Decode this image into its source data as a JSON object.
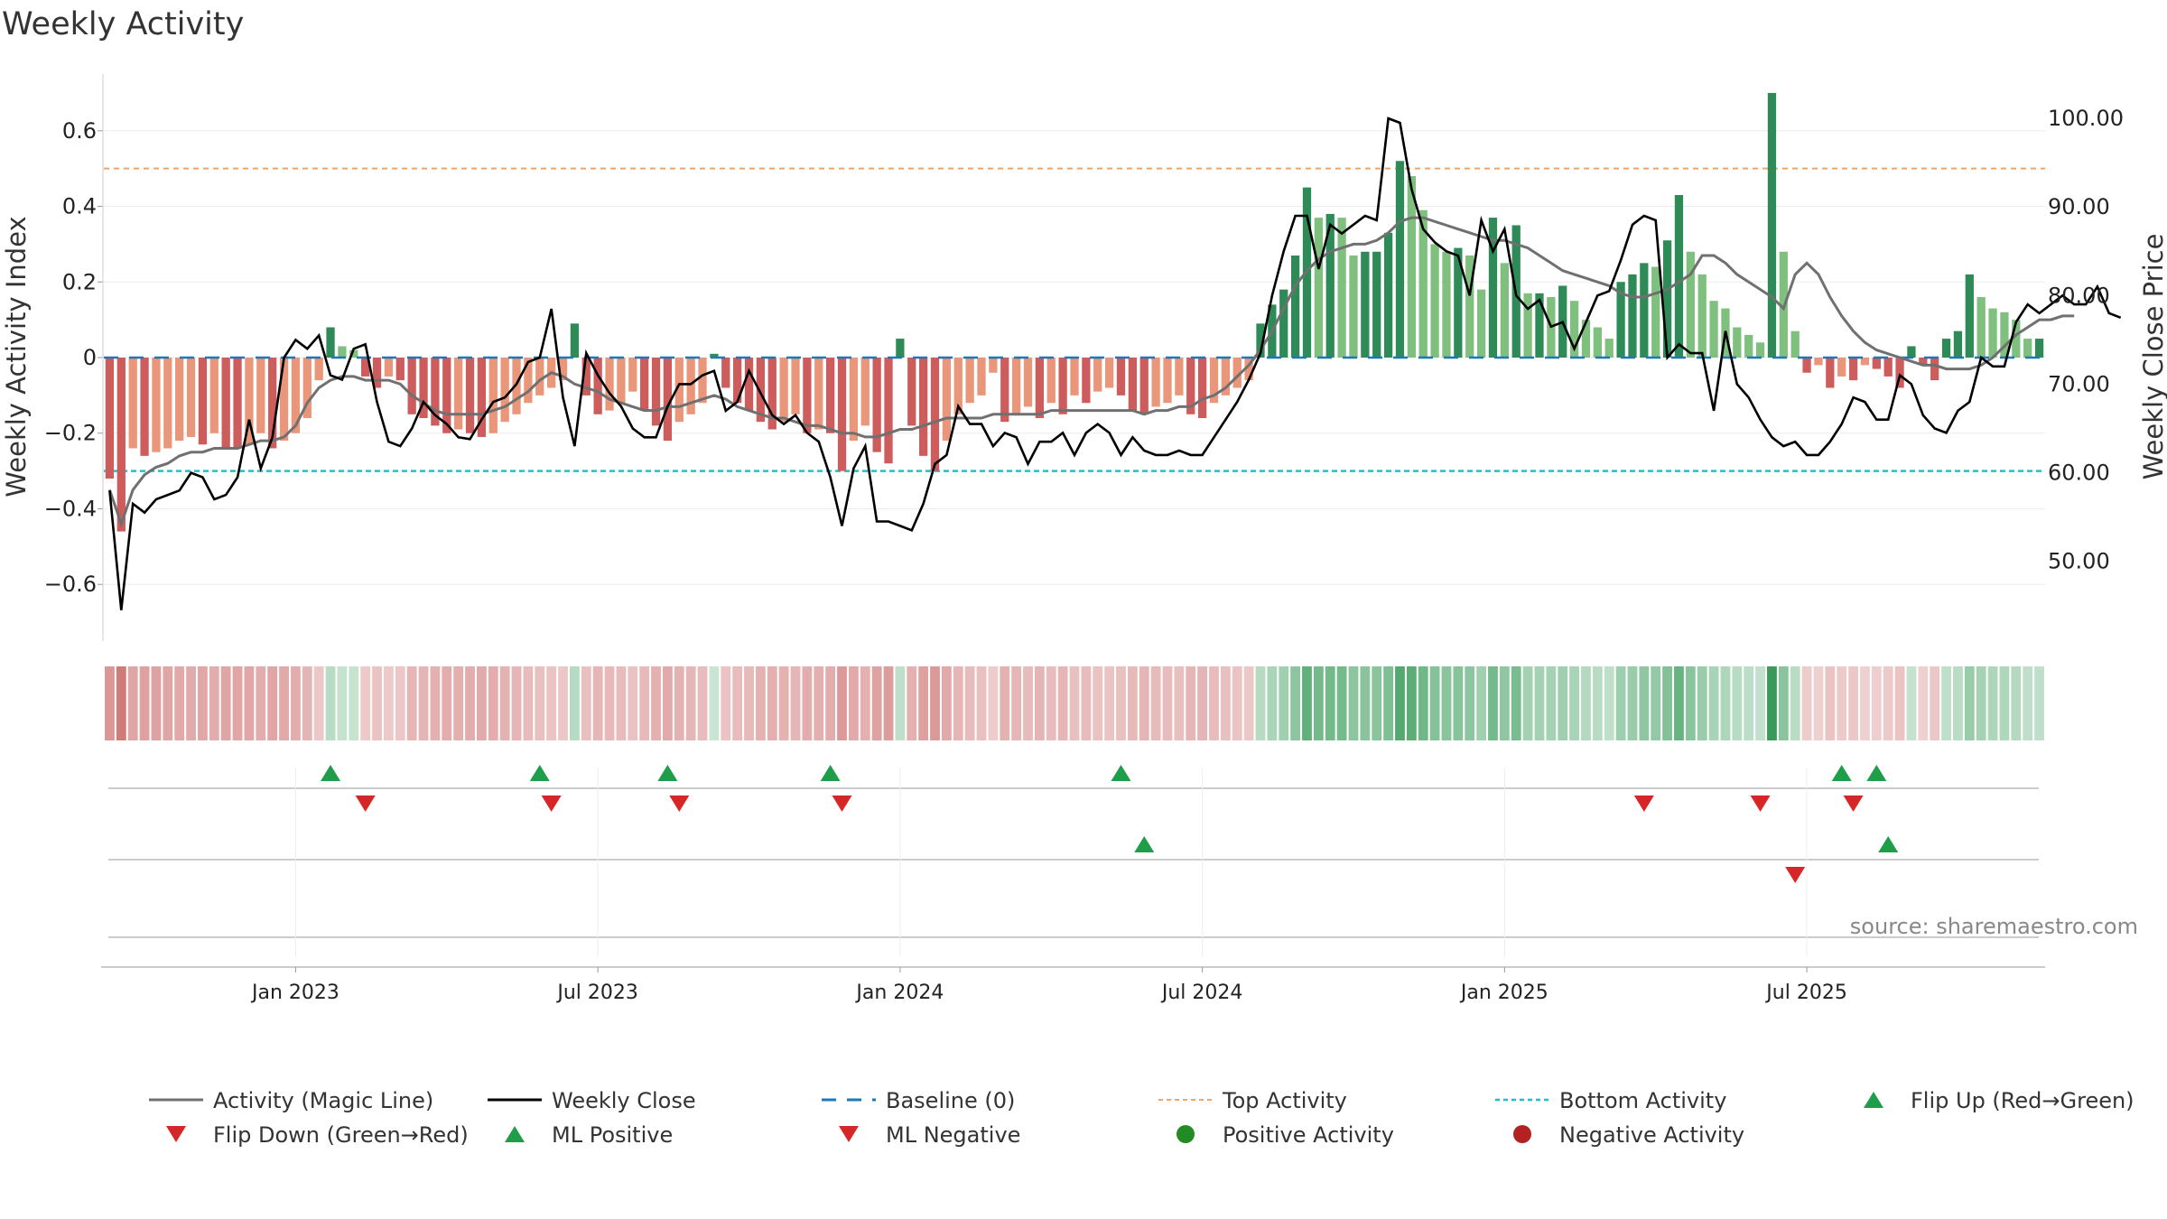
{
  "chart_data": {
    "type": "bar",
    "title": "Weekly Activity",
    "ylabel_left": "Weekly Activity Index",
    "ylabel_right": "Weekly Close Price",
    "source": "source: sharemaestro.com",
    "left_ylim": [
      -0.75,
      0.75
    ],
    "right_ylim": [
      41,
      105
    ],
    "left_ticks": [
      {
        "value": -0.6,
        "label": "−0.6"
      },
      {
        "value": -0.4,
        "label": "−0.4"
      },
      {
        "value": -0.2,
        "label": "−0.2"
      },
      {
        "value": 0,
        "label": "0"
      },
      {
        "value": 0.2,
        "label": "0.2"
      },
      {
        "value": 0.4,
        "label": "0.4"
      },
      {
        "value": 0.6,
        "label": "0.6"
      }
    ],
    "right_ticks": [
      {
        "value": 50,
        "label": "50.00"
      },
      {
        "value": 60,
        "label": "60.00"
      },
      {
        "value": 70,
        "label": "70.00"
      },
      {
        "value": 80,
        "label": "80.00"
      },
      {
        "value": 90,
        "label": "90.00"
      },
      {
        "value": 100,
        "label": "100.00"
      }
    ],
    "x_ticks": [
      {
        "week": 16,
        "label": "Jan 2023"
      },
      {
        "week": 42,
        "label": "Jul 2023"
      },
      {
        "week": 68,
        "label": "Jan 2024"
      },
      {
        "week": 94,
        "label": "Jul 2024"
      },
      {
        "week": 120,
        "label": "Jan 2025"
      },
      {
        "week": 146,
        "label": "Jul 2025"
      }
    ],
    "top_activity": 0.5,
    "bottom_activity": -0.3,
    "baseline": 0,
    "colors": {
      "strong_pos": "#2e8b57",
      "weak_pos": "#7fc07f",
      "strong_neg": "#cd5c5c",
      "weak_neg": "#e9967a",
      "close_line": "#000000",
      "magic_line": "#707070",
      "baseline": "#1f77b4",
      "top": "#f4a460",
      "bottom": "#20c0c8",
      "flip_up": "#1f9e4a",
      "flip_down": "#d62728",
      "pos_dot": "#228b22",
      "neg_dot": "#b22222"
    },
    "activity": [
      -0.32,
      -0.46,
      -0.24,
      -0.26,
      -0.25,
      -0.24,
      -0.22,
      -0.21,
      -0.23,
      -0.2,
      -0.24,
      -0.24,
      -0.23,
      -0.2,
      -0.24,
      -0.22,
      -0.2,
      -0.16,
      -0.06,
      0.08,
      0.03,
      0.02,
      -0.05,
      -0.08,
      -0.05,
      -0.06,
      -0.15,
      -0.16,
      -0.18,
      -0.2,
      -0.19,
      -0.2,
      -0.21,
      -0.2,
      -0.17,
      -0.15,
      -0.12,
      -0.1,
      -0.08,
      -0.06,
      0.09,
      -0.1,
      -0.15,
      -0.14,
      -0.12,
      -0.09,
      -0.14,
      -0.18,
      -0.22,
      -0.17,
      -0.15,
      -0.12,
      0.01,
      -0.08,
      -0.12,
      -0.14,
      -0.17,
      -0.19,
      -0.17,
      -0.15,
      -0.2,
      -0.19,
      -0.2,
      -0.3,
      -0.22,
      -0.18,
      -0.25,
      -0.28,
      0.05,
      -0.18,
      -0.26,
      -0.3,
      -0.22,
      -0.15,
      -0.12,
      -0.1,
      -0.04,
      -0.17,
      -0.15,
      -0.13,
      -0.16,
      -0.12,
      -0.15,
      -0.1,
      -0.12,
      -0.09,
      -0.08,
      -0.1,
      -0.14,
      -0.15,
      -0.13,
      -0.12,
      -0.1,
      -0.15,
      -0.16,
      -0.12,
      -0.1,
      -0.08,
      -0.06,
      0.09,
      0.14,
      0.18,
      0.27,
      0.45,
      0.37,
      0.38,
      0.37,
      0.27,
      0.28,
      0.28,
      0.33,
      0.52,
      0.48,
      0.39,
      0.3,
      0.28,
      0.29,
      0.27,
      0.18,
      0.37,
      0.25,
      0.35,
      0.17,
      0.17,
      0.16,
      0.19,
      0.15,
      0.1,
      0.08,
      0.05,
      0.2,
      0.22,
      0.25,
      0.24,
      0.31,
      0.43,
      0.28,
      0.22,
      0.15,
      0.13,
      0.08,
      0.06,
      0.04,
      0.7,
      0.28,
      0.07,
      -0.04,
      -0.02,
      -0.08,
      -0.05,
      -0.06,
      -0.02,
      -0.03,
      -0.05,
      -0.08,
      0.03,
      -0.02,
      -0.06,
      0.05,
      0.07,
      0.22,
      0.16,
      0.13,
      0.12,
      0.1,
      0.05,
      0.05
    ],
    "close": [
      58,
      44.5,
      56.5,
      55.5,
      57,
      57.5,
      58,
      60,
      59.5,
      57,
      57.5,
      59.5,
      66,
      60.5,
      64,
      73,
      75,
      74,
      75.5,
      71,
      70.5,
      74,
      74.5,
      68,
      63.5,
      63,
      65,
      68,
      66.5,
      65.5,
      64,
      63.8,
      66,
      68,
      68.5,
      70,
      72.5,
      73,
      78.5,
      68.5,
      63,
      73.5,
      71,
      69,
      67.5,
      65,
      64,
      64,
      67.5,
      70,
      70,
      71,
      71.5,
      67,
      68,
      71.5,
      69,
      66.5,
      65.5,
      66.5,
      64.5,
      63.5,
      59.5,
      54,
      60.5,
      63,
      54.5,
      54.5,
      54,
      53.5,
      56.5,
      61,
      62,
      67.5,
      65.5,
      65.5,
      63,
      64.5,
      64,
      61,
      63.5,
      63.5,
      64.5,
      62,
      64.5,
      65.5,
      64.5,
      62,
      64,
      62.5,
      62,
      62,
      62.5,
      62,
      62,
      64,
      66,
      68,
      70.5,
      73.5,
      80,
      85,
      89,
      89,
      83,
      88,
      87,
      88,
      89,
      88.5,
      100,
      99.5,
      92,
      87.5,
      86,
      85,
      84.5,
      80,
      88.5,
      85,
      87.5,
      80,
      78.5,
      79.5,
      76.5,
      77,
      74,
      77,
      80,
      80.5,
      84,
      88,
      89,
      88.5,
      73,
      74.5,
      73.5,
      73.5,
      67,
      76,
      70,
      68.5,
      66,
      64,
      63,
      63.5,
      62,
      62,
      63.5,
      65.5,
      68.5,
      68,
      66,
      66,
      71,
      70,
      66.5,
      65,
      64.5,
      67,
      68,
      73,
      72,
      72,
      77,
      79,
      78,
      79,
      80,
      79,
      79,
      81,
      78,
      77.5
    ],
    "magic": [
      -0.35,
      -0.44,
      -0.35,
      -0.31,
      -0.29,
      -0.28,
      -0.26,
      -0.25,
      -0.25,
      -0.24,
      -0.24,
      -0.24,
      -0.23,
      -0.22,
      -0.22,
      -0.21,
      -0.18,
      -0.12,
      -0.08,
      -0.06,
      -0.05,
      -0.05,
      -0.06,
      -0.06,
      -0.06,
      -0.07,
      -0.1,
      -0.12,
      -0.14,
      -0.15,
      -0.15,
      -0.15,
      -0.15,
      -0.14,
      -0.13,
      -0.11,
      -0.09,
      -0.06,
      -0.04,
      -0.05,
      -0.07,
      -0.08,
      -0.09,
      -0.11,
      -0.12,
      -0.13,
      -0.14,
      -0.14,
      -0.13,
      -0.13,
      -0.12,
      -0.11,
      -0.1,
      -0.11,
      -0.13,
      -0.14,
      -0.15,
      -0.16,
      -0.16,
      -0.17,
      -0.18,
      -0.18,
      -0.19,
      -0.2,
      -0.2,
      -0.21,
      -0.21,
      -0.2,
      -0.19,
      -0.19,
      -0.18,
      -0.17,
      -0.16,
      -0.16,
      -0.16,
      -0.16,
      -0.15,
      -0.15,
      -0.15,
      -0.15,
      -0.15,
      -0.14,
      -0.14,
      -0.14,
      -0.14,
      -0.14,
      -0.14,
      -0.14,
      -0.14,
      -0.15,
      -0.14,
      -0.14,
      -0.13,
      -0.13,
      -0.11,
      -0.1,
      -0.08,
      -0.05,
      -0.02,
      0.02,
      0.07,
      0.13,
      0.19,
      0.23,
      0.26,
      0.28,
      0.29,
      0.3,
      0.3,
      0.31,
      0.33,
      0.36,
      0.37,
      0.37,
      0.36,
      0.35,
      0.34,
      0.33,
      0.32,
      0.31,
      0.31,
      0.3,
      0.29,
      0.27,
      0.25,
      0.23,
      0.22,
      0.21,
      0.2,
      0.19,
      0.17,
      0.16,
      0.16,
      0.17,
      0.18,
      0.2,
      0.22,
      0.27,
      0.27,
      0.25,
      0.22,
      0.2,
      0.18,
      0.16,
      0.13,
      0.22,
      0.25,
      0.22,
      0.16,
      0.11,
      0.07,
      0.04,
      0.02,
      0.01,
      0.0,
      -0.01,
      -0.02,
      -0.02,
      -0.03,
      -0.03,
      -0.03,
      -0.02,
      0.0,
      0.03,
      0.06,
      0.08,
      0.1,
      0.1,
      0.11,
      0.11
    ],
    "flip_up_row1": [
      19,
      37,
      48,
      62,
      87,
      149,
      152
    ],
    "flip_down_row1": [
      22,
      38,
      49,
      63,
      132,
      142,
      150
    ],
    "ml_positive_row2": [
      89,
      153
    ],
    "ml_negative_row2": [
      145
    ],
    "legend": [
      {
        "label": "Activity (Magic Line)",
        "icon": "line-gray"
      },
      {
        "label": "Weekly Close",
        "icon": "line-black"
      },
      {
        "label": "Baseline (0)",
        "icon": "dash-blue"
      },
      {
        "label": "Top Activity",
        "icon": "dot-orange"
      },
      {
        "label": "Bottom Activity",
        "icon": "dot-cyan"
      },
      {
        "label": "Flip Up (Red→Green)",
        "icon": "triangle-up-green"
      },
      {
        "label": "Flip Down (Green→Red)",
        "icon": "triangle-down-red"
      },
      {
        "label": "ML Positive",
        "icon": "triangle-up-green"
      },
      {
        "label": "ML Negative",
        "icon": "triangle-down-red"
      },
      {
        "label": "Positive Activity",
        "icon": "circle-green"
      },
      {
        "label": "Negative Activity",
        "icon": "circle-red"
      }
    ]
  }
}
